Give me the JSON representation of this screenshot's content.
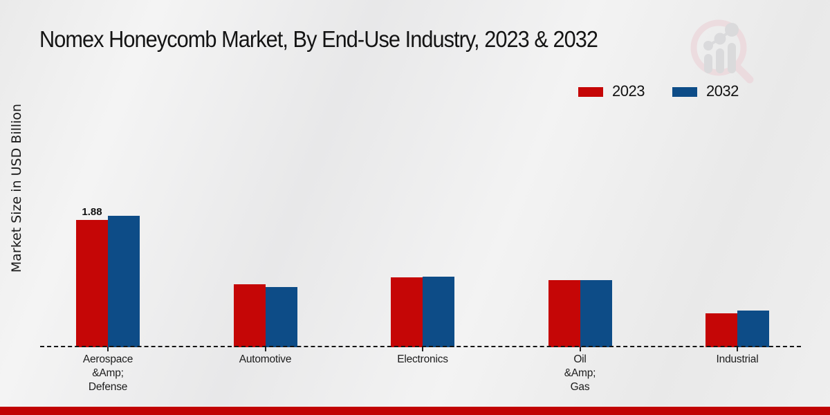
{
  "page": {
    "footer_bar_color": "#c10303"
  },
  "legend": {
    "items": [
      {
        "label": "2023",
        "color": "#c50606"
      },
      {
        "label": "2032",
        "color": "#0d4c87"
      }
    ]
  },
  "chart_data": {
    "type": "bar",
    "title": "Nomex Honeycomb Market, By End-Use Industry, 2023 & 2032",
    "xlabel": "",
    "ylabel": "Market Size in USD Billion",
    "categories": [
      "Aerospace\n&Amp;\nDefense",
      "Automotive",
      "Electronics",
      "Oil\n&Amp;\nGas",
      "Industrial"
    ],
    "series": [
      {
        "name": "2023",
        "color": "#c50606",
        "values": [
          1.88,
          0.93,
          1.03,
          0.99,
          0.5
        ]
      },
      {
        "name": "2032",
        "color": "#0d4c87",
        "values": [
          1.94,
          0.89,
          1.04,
          0.99,
          0.54
        ]
      }
    ],
    "bar_value_labels": [
      {
        "series": "2023",
        "category_index": 0,
        "text": "1.88"
      }
    ],
    "ylim": [
      0,
      2.05
    ],
    "grid": false,
    "legend_position": "top-right",
    "baseline_style": "dashed"
  }
}
